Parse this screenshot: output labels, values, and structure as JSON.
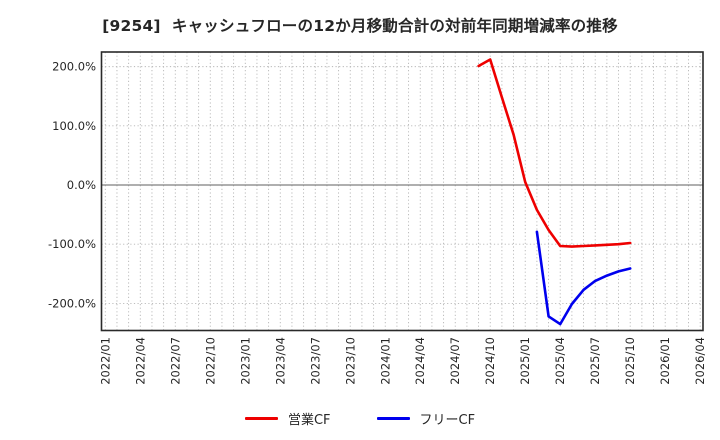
{
  "chart_data": {
    "type": "line",
    "title": "[9254]  キャッシュフローの12か月移動合計の対前年同期増減率の推移",
    "x_axis": {
      "start_month": "2022/01",
      "end_month": "2026/04",
      "tick_interval_months": 3,
      "minor_gridline_interval_months": 1,
      "tick_labels": [
        "2022/01",
        "2022/04",
        "2022/07",
        "2022/10",
        "2023/01",
        "2023/04",
        "2023/07",
        "2023/10",
        "2024/01",
        "2024/04",
        "2024/07",
        "2024/10",
        "2025/01",
        "2025/04",
        "2025/07",
        "2025/10",
        "2026/01",
        "2026/04"
      ]
    },
    "y_axis": {
      "unit": "%",
      "tick_labels": [
        "200.0%",
        "100.0%",
        "0.0%",
        "-100.0%",
        "-200.0%"
      ],
      "tick_values": [
        200,
        100,
        0,
        -100,
        -200
      ],
      "ylim": [
        -245.8,
        224.7
      ],
      "zero_line": true
    },
    "grid": true,
    "legend_position": "bottom-center",
    "series": [
      {
        "name": "営業CF",
        "slug": "operating-cf",
        "color": "#ee0000",
        "points": [
          [
            "2024/09",
            201
          ],
          [
            "2024/10",
            212
          ],
          [
            "2024/11",
            148
          ],
          [
            "2024/12",
            85
          ],
          [
            "2025/01",
            5
          ],
          [
            "2025/02",
            -42
          ],
          [
            "2025/03",
            -76
          ],
          [
            "2025/04",
            -103
          ],
          [
            "2025/05",
            -104
          ],
          [
            "2025/06",
            -103
          ],
          [
            "2025/07",
            -102
          ],
          [
            "2025/08",
            -101
          ],
          [
            "2025/09",
            -100
          ],
          [
            "2025/10",
            -98
          ]
        ]
      },
      {
        "name": "フリーCF",
        "slug": "free-cf",
        "color": "#0000ee",
        "points": [
          [
            "2025/02",
            -79
          ],
          [
            "2025/03",
            -222
          ],
          [
            "2025/04",
            -235
          ],
          [
            "2025/05",
            -201
          ],
          [
            "2025/06",
            -177
          ],
          [
            "2025/07",
            -162
          ],
          [
            "2025/08",
            -153
          ],
          [
            "2025/09",
            -146
          ],
          [
            "2025/10",
            -141
          ]
        ]
      }
    ],
    "style": {
      "background": "#ffffff",
      "border_color": "#2a2a2a",
      "gridline_color": "#b5b5b5",
      "zero_line_color": "#7f7f7f",
      "tick_label_color": "#262626",
      "title_color": "#262626"
    }
  }
}
